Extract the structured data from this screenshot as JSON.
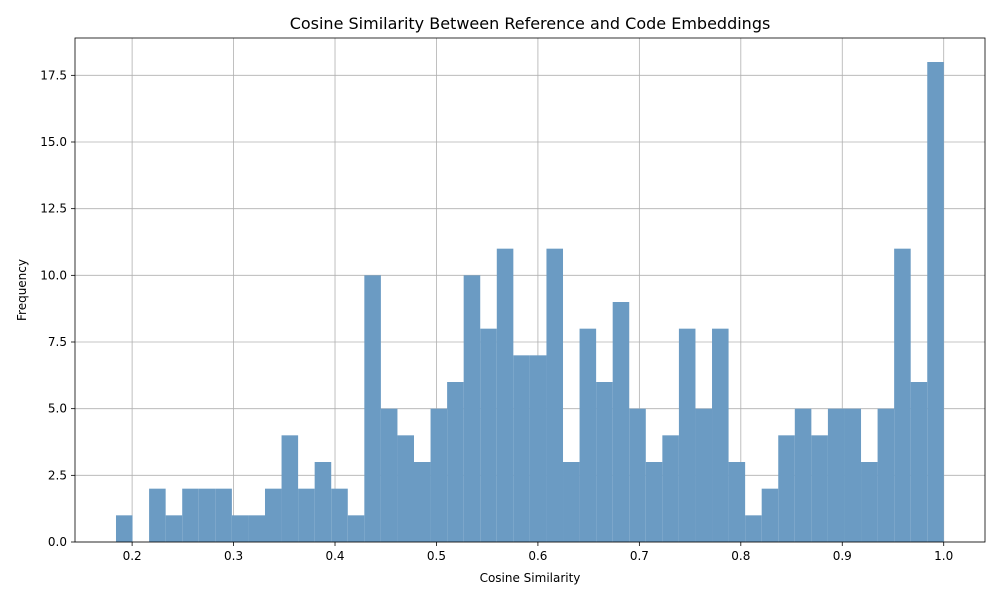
{
  "chart_data": {
    "type": "bar",
    "title": "Cosine Similarity Between Reference and Code Embeddings",
    "xlabel": "Cosine Similarity",
    "ylabel": "Frequency",
    "xlim": [
      0.1437,
      1.0407
    ],
    "ylim": [
      0,
      18.9
    ],
    "grid": true,
    "bar_color": "#6b9bc3",
    "bin_edges_start": 0.1841,
    "bin_width": 0.01632,
    "values": [
      1,
      0,
      2,
      1,
      2,
      2,
      2,
      1,
      1,
      2,
      4,
      2,
      3,
      2,
      1,
      10,
      5,
      4,
      3,
      5,
      6,
      10,
      8,
      11,
      7,
      7,
      11,
      3,
      8,
      6,
      9,
      5,
      3,
      4,
      8,
      5,
      8,
      3,
      1,
      2,
      4,
      5,
      4,
      5,
      5,
      3,
      5,
      11,
      6,
      18
    ],
    "x_ticks": [
      {
        "value": 0.2,
        "label": "0.2"
      },
      {
        "value": 0.3,
        "label": "0.3"
      },
      {
        "value": 0.4,
        "label": "0.4"
      },
      {
        "value": 0.5,
        "label": "0.5"
      },
      {
        "value": 0.6,
        "label": "0.6"
      },
      {
        "value": 0.7,
        "label": "0.7"
      },
      {
        "value": 0.8,
        "label": "0.8"
      },
      {
        "value": 0.9,
        "label": "0.9"
      },
      {
        "value": 1.0,
        "label": "1.0"
      }
    ],
    "y_ticks": [
      {
        "value": 0,
        "label": "0.0"
      },
      {
        "value": 2.5,
        "label": "2.5"
      },
      {
        "value": 5,
        "label": "5.0"
      },
      {
        "value": 7.5,
        "label": "7.5"
      },
      {
        "value": 10,
        "label": "10.0"
      },
      {
        "value": 12.5,
        "label": "12.5"
      },
      {
        "value": 15,
        "label": "15.0"
      },
      {
        "value": 17.5,
        "label": "17.5"
      }
    ]
  }
}
